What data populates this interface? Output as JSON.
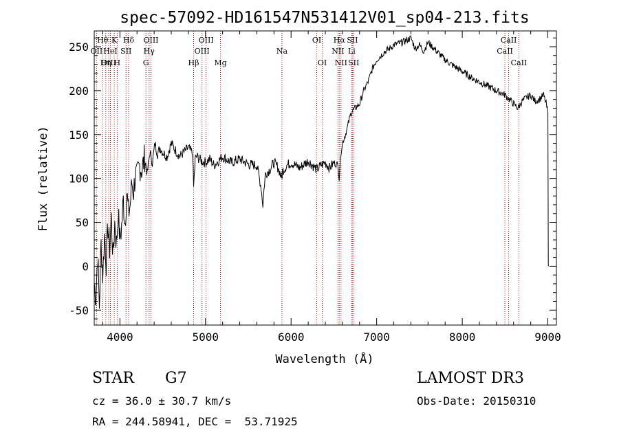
{
  "chart_data": {
    "type": "line",
    "title": "spec-57092-HD161547N531412V01_sp04-213.fits",
    "xlabel": "Wavelength (Å)",
    "ylabel": "Flux (relative)",
    "xlim": [
      3700,
      9100
    ],
    "ylim": [
      -67,
      268
    ],
    "xticks": [
      4000,
      5000,
      6000,
      7000,
      8000,
      9000
    ],
    "yticks": [
      -50,
      0,
      50,
      100,
      150,
      200,
      250
    ],
    "series": [
      {
        "name": "flux",
        "x": [
          3700,
          3720,
          3740,
          3760,
          3780,
          3800,
          3820,
          3840,
          3860,
          3880,
          3900,
          3920,
          3940,
          3960,
          3980,
          4000,
          4020,
          4040,
          4060,
          4080,
          4100,
          4120,
          4140,
          4160,
          4180,
          4200,
          4230,
          4260,
          4290,
          4320,
          4350,
          4380,
          4410,
          4440,
          4470,
          4500,
          4550,
          4600,
          4650,
          4700,
          4750,
          4800,
          4850,
          4861,
          4880,
          4900,
          4950,
          5000,
          5050,
          5100,
          5150,
          5200,
          5300,
          5400,
          5500,
          5600,
          5650,
          5670,
          5690,
          5700,
          5750,
          5800,
          5850,
          5890,
          5900,
          5950,
          6000,
          6100,
          6200,
          6300,
          6350,
          6400,
          6450,
          6500,
          6550,
          6562,
          6580,
          6600,
          6650,
          6700,
          6750,
          6800,
          6850,
          6900,
          6950,
          7000,
          7050,
          7100,
          7150,
          7200,
          7300,
          7400,
          7450,
          7500,
          7550,
          7600,
          7650,
          7700,
          7800,
          7900,
          8000,
          8100,
          8200,
          8300,
          8400,
          8500,
          8550,
          8600,
          8650,
          8700,
          8750,
          8800,
          8850,
          8900,
          8950,
          8980,
          9000,
          9005
        ],
        "y": [
          -20,
          -35,
          15,
          -45,
          25,
          -10,
          35,
          5,
          45,
          20,
          55,
          10,
          50,
          25,
          60,
          30,
          45,
          75,
          50,
          85,
          60,
          70,
          95,
          85,
          105,
          100,
          115,
          110,
          125,
          105,
          130,
          118,
          140,
          128,
          135,
          130,
          125,
          140,
          132,
          125,
          130,
          135,
          128,
          90,
          122,
          125,
          120,
          118,
          122,
          115,
          120,
          125,
          118,
          122,
          116,
          115,
          90,
          70,
          95,
          105,
          110,
          118,
          112,
          100,
          108,
          115,
          118,
          112,
          120,
          110,
          115,
          118,
          112,
          118,
          115,
          100,
          128,
          140,
          155,
          175,
          180,
          185,
          200,
          210,
          225,
          235,
          240,
          245,
          248,
          252,
          255,
          260,
          248,
          252,
          245,
          255,
          250,
          245,
          235,
          228,
          222,
          215,
          210,
          205,
          200,
          195,
          190,
          185,
          180,
          188,
          192,
          195,
          188,
          190,
          195,
          185,
          175,
          0
        ]
      }
    ],
    "line_marks": [
      {
        "label": "Hθ",
        "wl": 3798,
        "row": 1
      },
      {
        "label": "OII",
        "wl": 3727,
        "row": 2
      },
      {
        "label": "OIII",
        "wl": 3869,
        "row": 3
      },
      {
        "label": "K",
        "wl": 3934,
        "row": 1
      },
      {
        "label": "HeI",
        "wl": 3889,
        "row": 2
      },
      {
        "label": "Hη",
        "wl": 3835,
        "row": 3
      },
      {
        "label": "Hδ",
        "wl": 4102,
        "row": 1
      },
      {
        "label": "SII",
        "wl": 4072,
        "row": 2
      },
      {
        "label": "H",
        "wl": 3968,
        "row": 3
      },
      {
        "label": "OIII",
        "wl": 4363,
        "row": 1
      },
      {
        "label": "Hγ",
        "wl": 4341,
        "row": 2
      },
      {
        "label": "G",
        "wl": 4304,
        "row": 3
      },
      {
        "label": "OIII",
        "wl": 5007,
        "row": 1
      },
      {
        "label": "OIII",
        "wl": 4959,
        "row": 2
      },
      {
        "label": "Hβ",
        "wl": 4861,
        "row": 3
      },
      {
        "label": "Mg",
        "wl": 5175,
        "row": 3
      },
      {
        "label": "Na",
        "wl": 5893,
        "row": 2
      },
      {
        "label": "OI",
        "wl": 6300,
        "row": 1
      },
      {
        "label": "OI",
        "wl": 6364,
        "row": 3
      },
      {
        "label": "Hα",
        "wl": 6563,
        "row": 1
      },
      {
        "label": "NII",
        "wl": 6548,
        "row": 2
      },
      {
        "label": "NII",
        "wl": 6583,
        "row": 3
      },
      {
        "label": "SII",
        "wl": 6716,
        "row": 1
      },
      {
        "label": "Li",
        "wl": 6708,
        "row": 2
      },
      {
        "label": "SII",
        "wl": 6731,
        "row": 3
      },
      {
        "label": "CaII",
        "wl": 8542,
        "row": 1
      },
      {
        "label": "CaII",
        "wl": 8498,
        "row": 2
      },
      {
        "label": "CaII",
        "wl": 8662,
        "row": 3
      }
    ]
  },
  "info": {
    "object_type": "STAR",
    "subclass": "G7",
    "survey": "LAMOST DR3",
    "redshift_line": "cz = 36.0 ± 30.7 km/s",
    "obs_date_line": "Obs-Date: 20150310",
    "coords_line": "RA = 244.58941, DEC =  53.71925"
  }
}
